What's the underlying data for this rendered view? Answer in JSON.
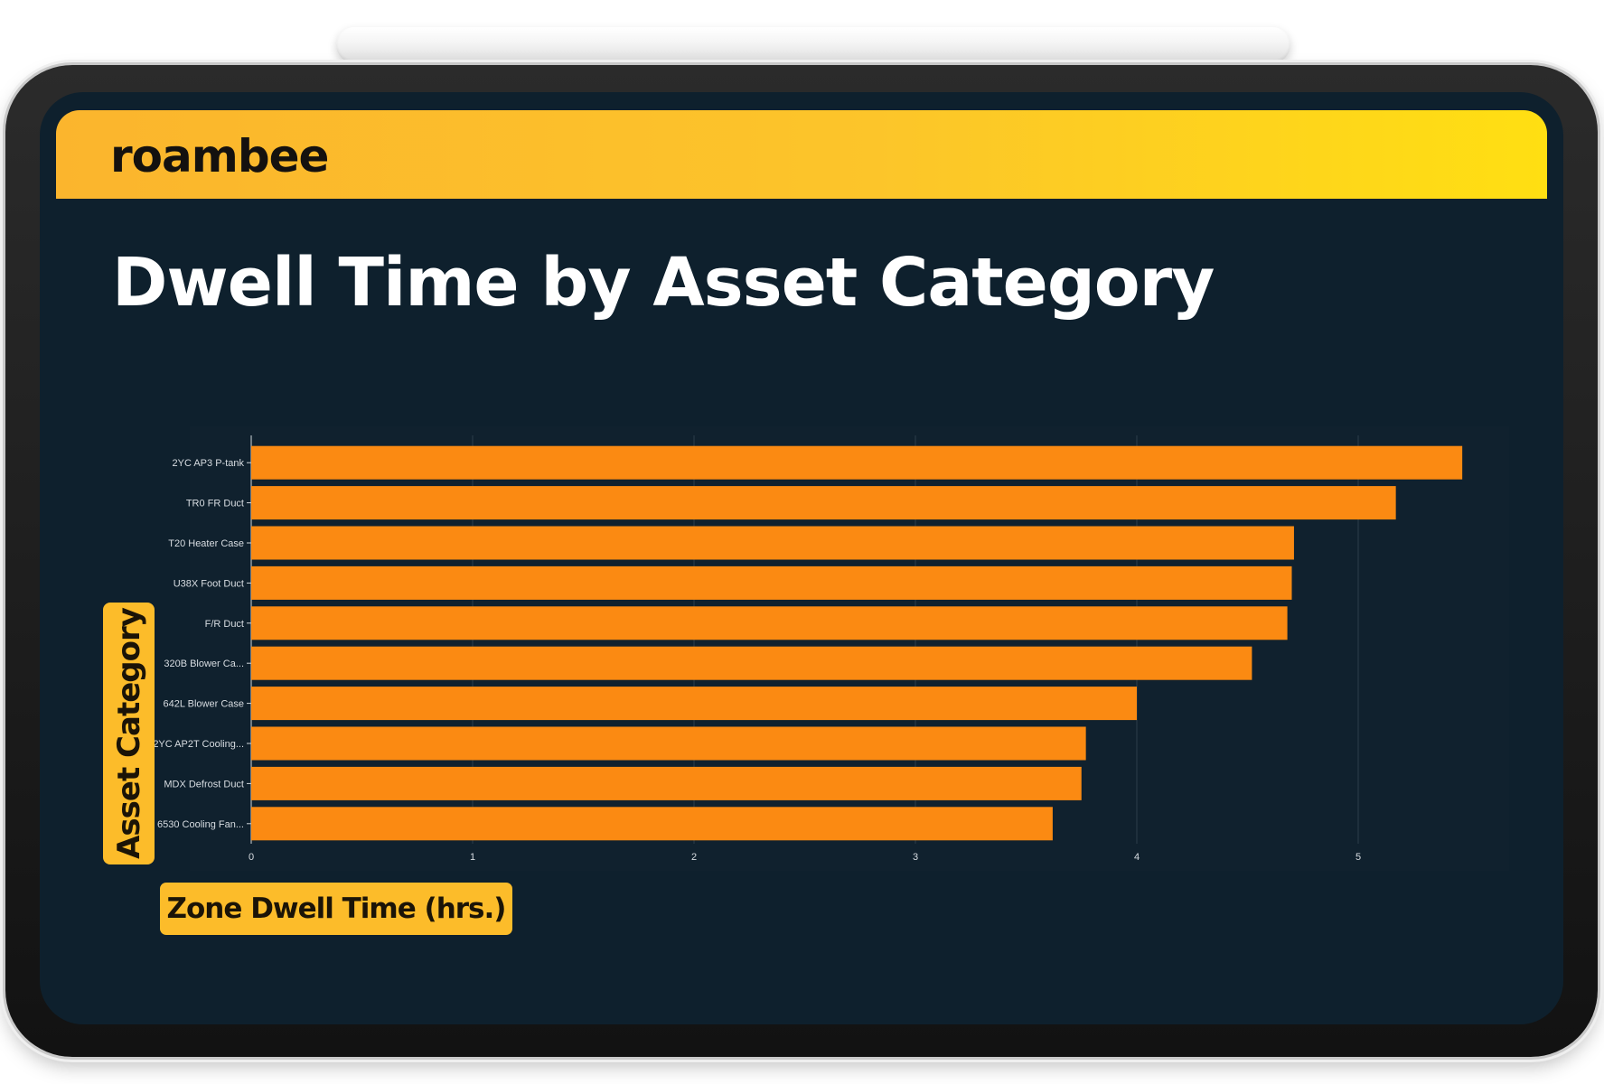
{
  "brand": {
    "name": "roambee"
  },
  "colors": {
    "banner_start": "#fbb52d",
    "banner_end": "#ffdf12",
    "screen_bg": "#0e202d",
    "bar": "#fb8a12",
    "label_box": "#fcbc2a",
    "tick_text": "#d8dde2"
  },
  "chart_data": {
    "type": "bar",
    "orientation": "horizontal",
    "title": "Dwell Time by Asset Category",
    "xlabel": "Zone Dwell Time (hrs.)",
    "ylabel": "Asset Category",
    "categories": [
      "2YC AP3 P-tank",
      "TR0 FR Duct",
      "T20 Heater Case",
      "U38X Foot Duct",
      "F/R Duct",
      "320B Blower Ca...",
      "642L Blower Case",
      "2YC AP2T Cooling...",
      "MDX Defrost Duct",
      "6530 Cooling Fan..."
    ],
    "values": [
      5.47,
      5.17,
      4.71,
      4.7,
      4.68,
      4.52,
      4.0,
      3.77,
      3.75,
      3.62
    ],
    "xlim": [
      0,
      5.5
    ],
    "xticks": [
      "0",
      "1",
      "2",
      "3",
      "4",
      "5"
    ],
    "grid": "vertical",
    "legend": "none"
  }
}
